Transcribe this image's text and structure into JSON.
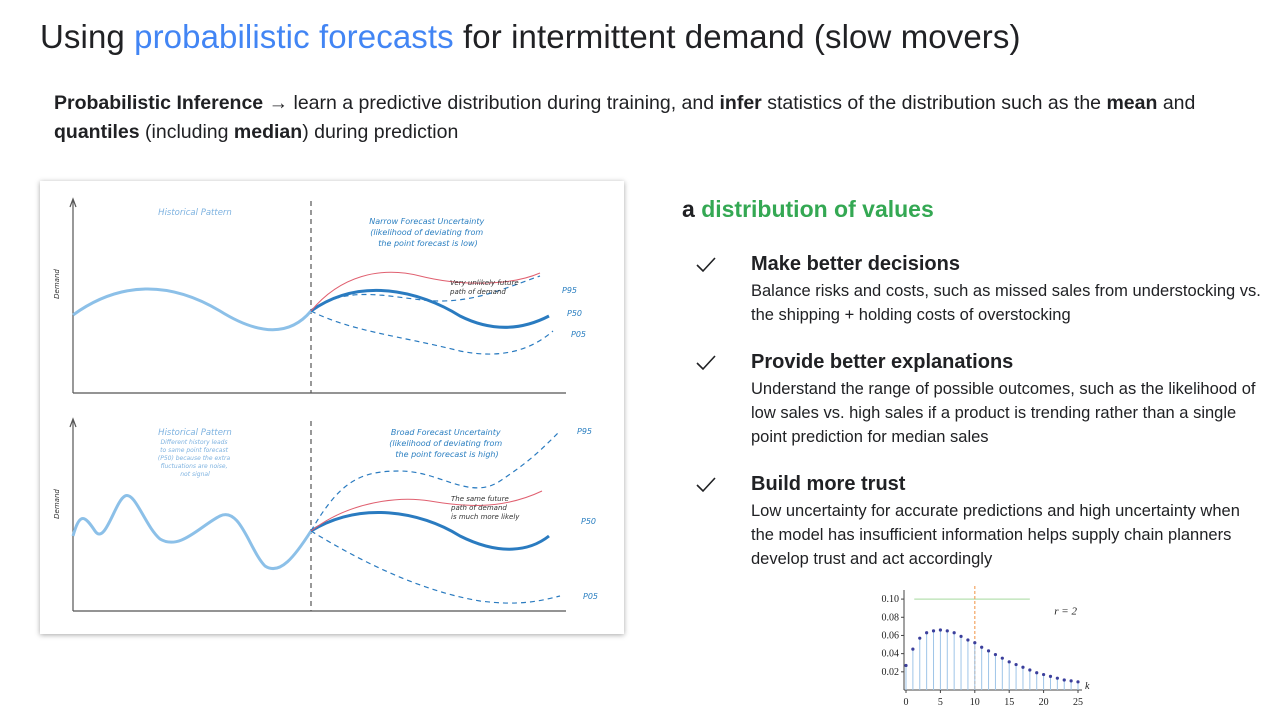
{
  "slide": {
    "title_prefix": "Using ",
    "title_highlight": "probabilistic forecasts",
    "title_suffix": " for intermittent demand (slow movers)",
    "colors": {
      "highlight_blue": "#4285f4",
      "highlight_green": "#34a853",
      "text": "#202124"
    }
  },
  "intro": {
    "term": "Probabilistic Inference",
    "arrow": " → ",
    "part1": "learn a predictive distribution during training, and ",
    "infer": "infer",
    "part2": " statistics of the distribution such as the ",
    "mean": "mean",
    "part3": " and ",
    "quantiles": "quantiles",
    "part4": " (including ",
    "median": "median",
    "part5": ") during prediction"
  },
  "forecast_figure": {
    "top_panel": {
      "ylabel": "Demand",
      "left_label": "Historical Pattern",
      "right_label": [
        "Narrow Forecast Uncertainty",
        "(likelihood of deviating from",
        "the point forecast is low)"
      ],
      "note": [
        "Very unlikely future",
        "path of demand"
      ],
      "quantiles": [
        "P95",
        "P50",
        "P05"
      ]
    },
    "bottom_panel": {
      "ylabel": "Demand",
      "left_label": "Historical Pattern",
      "left_note": [
        "Different history leads",
        "to same point forecast",
        "(P50) because the extra",
        "fluctuations are noise,",
        "not signal"
      ],
      "right_label": [
        "Broad Forecast Uncertainty",
        "(likelihood of deviating from",
        "the point forecast is high)"
      ],
      "note": [
        "The same future",
        "path of demand",
        "is much more likely"
      ],
      "quantiles": [
        "P95",
        "P50",
        "P05"
      ]
    }
  },
  "distribution": {
    "prefix": "a ",
    "highlight": "distribution of values"
  },
  "benefits": [
    {
      "icon": "check-icon",
      "title": "Make better decisions",
      "desc": "Balance risks and costs, such as missed sales from understocking vs. the shipping + holding costs of overstocking"
    },
    {
      "icon": "check-icon",
      "title": "Provide better explanations",
      "desc": "Understand the range of possible outcomes, such as the likelihood of low sales vs. high sales if a product is trending rather than a single point prediction for median sales"
    },
    {
      "icon": "check-icon",
      "title": "Build more trust",
      "desc": "Low uncertainty for accurate predictions and high uncertainty when the model has insufficient information helps supply chain planners develop trust and act accordingly"
    }
  ],
  "chart_data": {
    "type": "bar",
    "title": "",
    "xlabel": "k",
    "ylabel": "",
    "annotation": "r = 2",
    "x": [
      0,
      1,
      2,
      3,
      4,
      5,
      6,
      7,
      8,
      9,
      10,
      11,
      12,
      13,
      14,
      15,
      16,
      17,
      18,
      19,
      20,
      21,
      22,
      23,
      24,
      25
    ],
    "values": [
      0.027,
      0.045,
      0.057,
      0.063,
      0.065,
      0.066,
      0.065,
      0.063,
      0.059,
      0.055,
      0.052,
      0.047,
      0.043,
      0.039,
      0.035,
      0.031,
      0.028,
      0.025,
      0.022,
      0.019,
      0.017,
      0.015,
      0.013,
      0.011,
      0.01,
      0.009
    ],
    "xlim": [
      0,
      25
    ],
    "ylim": [
      0,
      0.11
    ],
    "xticks": [
      0,
      5,
      10,
      15,
      20,
      25
    ],
    "yticks": [
      0.02,
      0.04,
      0.06,
      0.08,
      0.1
    ],
    "ytick_labels": [
      "0.02",
      "0.04",
      "0.06",
      "0.08",
      "0.10"
    ],
    "mean_line_x": 10,
    "reference_line_y": 0.1,
    "grid": false,
    "colors": {
      "stem": "#9fc5e8",
      "point": "#3b3f9c",
      "mean": "#f4a460",
      "reference": "#b7e1b0"
    }
  }
}
